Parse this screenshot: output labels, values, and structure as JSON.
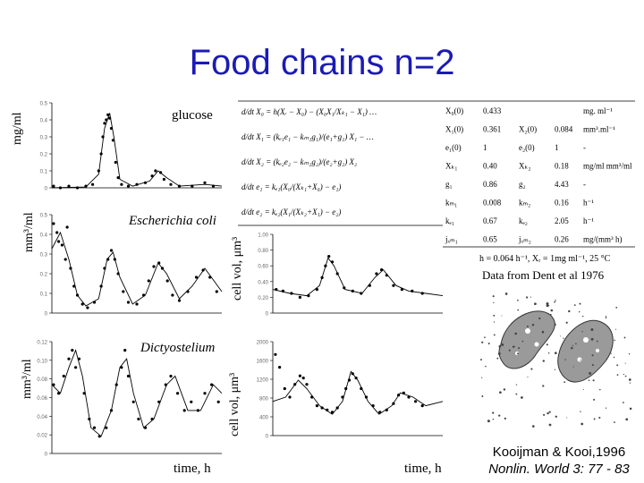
{
  "title": "Food chains n=2",
  "y_labels": {
    "glucose": "mg/ml",
    "coli": "mm³/ml",
    "dicty": "mm³/ml",
    "cellvol_top": "cell vol, μm³",
    "cellvol_bottom": "cell vol, μm³"
  },
  "x_labels": {
    "left": "time, h",
    "right": "time, h"
  },
  "panel_labels": {
    "glucose": "glucose",
    "coli": "Escherichia coli",
    "dicty": "Dictyostelium"
  },
  "parameters": {
    "header": [
      "X₀(0)",
      "0.433",
      "",
      "",
      "mg. ml⁻¹"
    ],
    "rows": [
      [
        "X₁(0)",
        "0.361",
        "X₂(0)",
        "0.084",
        "mm³.ml⁻¹"
      ],
      [
        "e₁(0)",
        "1",
        "e₂(0)",
        "1",
        "-"
      ],
      [
        "Xₖ₁",
        "0.40",
        "Xₖ₂",
        "0.18",
        "mg/ml  mm³/ml"
      ],
      [
        "g₁",
        "0.86",
        "g₂",
        "4.43",
        "-"
      ],
      [
        "kₘ₁",
        "0.008",
        "kₘ₂",
        "0.16",
        "h⁻¹"
      ],
      [
        "kₑ₁",
        "0.67",
        "kₑ₂",
        "2.05",
        "h⁻¹"
      ],
      [
        "jₓₘ₁",
        "0.65",
        "jₓₘ₂",
        "0.26",
        "mg/(mm³ h)"
      ]
    ],
    "note": "h = 0.064 h⁻¹, Xᵣ = 1mg ml⁻¹, 25 °C",
    "source": "Data from Dent et al 1976"
  },
  "equations": [
    "d/dt X₀ = h(Xᵣ − X₀) − (X₀X₁/Xₖ₁ − X₁) …",
    "d/dt X₁ = (kₑ₁e₁ − kₘ₁g₁)/(e₁+g₁) X₁ − …",
    "d/dt X₂ = (kₑ₂e₂ − kₘ₂g₂)/(e₂+g₂) X₂",
    "d/dt e₁ = kₑ₁(X₀/(Xₖ₁+X₀) − e₁)",
    "d/dt e₂ = kₑ₂(X₁/(Xₖ₂+X₁) − e₂)"
  ],
  "credit": {
    "line1": "Kooijman & Kooi,1996",
    "line2": "Nonlin. World 3: 77 - 83"
  },
  "chart_data": [
    {
      "type": "scatter",
      "name": "glucose",
      "xlim": [
        0,
        200
      ],
      "ylim": [
        0,
        0.5
      ],
      "ticks": [
        "0.5",
        "0.4",
        "0.3",
        "0.2",
        "0.1",
        "0"
      ],
      "model": [
        [
          0,
          0
        ],
        [
          40,
          0.005
        ],
        [
          55,
          0.08
        ],
        [
          62,
          0.35
        ],
        [
          68,
          0.44
        ],
        [
          73,
          0.3
        ],
        [
          80,
          0.05
        ],
        [
          95,
          0.01
        ],
        [
          115,
          0.04
        ],
        [
          125,
          0.1
        ],
        [
          135,
          0.06
        ],
        [
          150,
          0.01
        ],
        [
          180,
          0.02
        ],
        [
          200,
          0.01
        ]
      ],
      "points": [
        [
          2,
          0.01
        ],
        [
          10,
          0.0
        ],
        [
          20,
          0.01
        ],
        [
          30,
          0.0
        ],
        [
          40,
          0.01
        ],
        [
          48,
          0.02
        ],
        [
          55,
          0.1
        ],
        [
          58,
          0.2
        ],
        [
          60,
          0.3
        ],
        [
          62,
          0.38
        ],
        [
          64,
          0.4
        ],
        [
          66,
          0.43
        ],
        [
          68,
          0.41
        ],
        [
          70,
          0.35
        ],
        [
          72,
          0.28
        ],
        [
          75,
          0.15
        ],
        [
          78,
          0.06
        ],
        [
          82,
          0.02
        ],
        [
          90,
          0.01
        ],
        [
          100,
          0.02
        ],
        [
          110,
          0.03
        ],
        [
          118,
          0.07
        ],
        [
          122,
          0.1
        ],
        [
          128,
          0.09
        ],
        [
          132,
          0.05
        ],
        [
          140,
          0.02
        ],
        [
          150,
          0.01
        ],
        [
          165,
          0.01
        ],
        [
          180,
          0.03
        ],
        [
          190,
          0.01
        ]
      ]
    },
    {
      "type": "scatter",
      "name": "Escherichia coli",
      "xlim": [
        0,
        200
      ],
      "ylim": [
        0,
        0.55
      ],
      "ticks": [
        "0.5",
        "0.4",
        "0.3",
        "0.2",
        "0.1",
        "0"
      ],
      "model": [
        [
          0,
          0.36
        ],
        [
          10,
          0.45
        ],
        [
          20,
          0.3
        ],
        [
          30,
          0.1
        ],
        [
          40,
          0.04
        ],
        [
          55,
          0.08
        ],
        [
          65,
          0.3
        ],
        [
          72,
          0.34
        ],
        [
          80,
          0.2
        ],
        [
          95,
          0.05
        ],
        [
          110,
          0.1
        ],
        [
          125,
          0.28
        ],
        [
          135,
          0.22
        ],
        [
          150,
          0.08
        ],
        [
          165,
          0.15
        ],
        [
          180,
          0.25
        ],
        [
          200,
          0.12
        ]
      ],
      "points": [
        [
          2,
          0.5
        ],
        [
          6,
          0.45
        ],
        [
          8,
          0.4
        ],
        [
          12,
          0.38
        ],
        [
          16,
          0.3
        ],
        [
          18,
          0.48
        ],
        [
          22,
          0.25
        ],
        [
          26,
          0.15
        ],
        [
          30,
          0.1
        ],
        [
          36,
          0.05
        ],
        [
          42,
          0.03
        ],
        [
          50,
          0.06
        ],
        [
          58,
          0.15
        ],
        [
          62,
          0.25
        ],
        [
          66,
          0.3
        ],
        [
          70,
          0.35
        ],
        [
          74,
          0.3
        ],
        [
          78,
          0.22
        ],
        [
          84,
          0.12
        ],
        [
          90,
          0.06
        ],
        [
          100,
          0.05
        ],
        [
          108,
          0.1
        ],
        [
          114,
          0.18
        ],
        [
          120,
          0.26
        ],
        [
          126,
          0.28
        ],
        [
          130,
          0.25
        ],
        [
          136,
          0.18
        ],
        [
          142,
          0.1
        ],
        [
          150,
          0.07
        ],
        [
          160,
          0.12
        ],
        [
          170,
          0.2
        ],
        [
          178,
          0.24
        ],
        [
          186,
          0.2
        ],
        [
          194,
          0.12
        ]
      ]
    },
    {
      "type": "scatter",
      "name": "Dictyostelium",
      "xlim": [
        0,
        200
      ],
      "ylim": [
        0,
        0.13
      ],
      "ticks": [
        "0.12",
        "0.10",
        "0.08",
        "0.06",
        "0.04",
        "0.02",
        "0"
      ],
      "model": [
        [
          0,
          0.08
        ],
        [
          10,
          0.07
        ],
        [
          20,
          0.1
        ],
        [
          28,
          0.12
        ],
        [
          36,
          0.09
        ],
        [
          46,
          0.03
        ],
        [
          58,
          0.02
        ],
        [
          70,
          0.05
        ],
        [
          80,
          0.1
        ],
        [
          88,
          0.11
        ],
        [
          96,
          0.07
        ],
        [
          108,
          0.03
        ],
        [
          120,
          0.04
        ],
        [
          135,
          0.08
        ],
        [
          145,
          0.09
        ],
        [
          160,
          0.05
        ],
        [
          175,
          0.05
        ],
        [
          190,
          0.08
        ],
        [
          200,
          0.07
        ]
      ],
      "points": [
        [
          2,
          0.08
        ],
        [
          8,
          0.07
        ],
        [
          14,
          0.09
        ],
        [
          20,
          0.11
        ],
        [
          24,
          0.12
        ],
        [
          28,
          0.1
        ],
        [
          32,
          0.11
        ],
        [
          38,
          0.07
        ],
        [
          44,
          0.04
        ],
        [
          50,
          0.03
        ],
        [
          56,
          0.02
        ],
        [
          64,
          0.03
        ],
        [
          70,
          0.05
        ],
        [
          76,
          0.08
        ],
        [
          82,
          0.1
        ],
        [
          86,
          0.12
        ],
        [
          90,
          0.09
        ],
        [
          96,
          0.06
        ],
        [
          102,
          0.04
        ],
        [
          110,
          0.03
        ],
        [
          118,
          0.04
        ],
        [
          126,
          0.06
        ],
        [
          134,
          0.08
        ],
        [
          140,
          0.09
        ],
        [
          148,
          0.07
        ],
        [
          156,
          0.05
        ],
        [
          164,
          0.06
        ],
        [
          172,
          0.05
        ],
        [
          180,
          0.07
        ],
        [
          188,
          0.08
        ],
        [
          196,
          0.06
        ]
      ]
    },
    {
      "type": "scatter",
      "name": "E. coli cell volume",
      "xlim": [
        0,
        200
      ],
      "ylim": [
        0,
        1
      ],
      "ticks": [
        "1.00",
        "0.80",
        "0.60",
        "0.40",
        "0.20",
        "0"
      ],
      "model": [
        [
          0,
          0.3
        ],
        [
          20,
          0.25
        ],
        [
          40,
          0.22
        ],
        [
          55,
          0.35
        ],
        [
          65,
          0.7
        ],
        [
          72,
          0.6
        ],
        [
          85,
          0.3
        ],
        [
          105,
          0.25
        ],
        [
          120,
          0.45
        ],
        [
          130,
          0.55
        ],
        [
          145,
          0.35
        ],
        [
          160,
          0.28
        ],
        [
          180,
          0.25
        ],
        [
          200,
          0.22
        ]
      ],
      "points": [
        [
          4,
          0.3
        ],
        [
          12,
          0.28
        ],
        [
          22,
          0.25
        ],
        [
          32,
          0.2
        ],
        [
          42,
          0.22
        ],
        [
          52,
          0.3
        ],
        [
          58,
          0.45
        ],
        [
          62,
          0.6
        ],
        [
          66,
          0.72
        ],
        [
          70,
          0.65
        ],
        [
          76,
          0.5
        ],
        [
          84,
          0.32
        ],
        [
          94,
          0.28
        ],
        [
          104,
          0.25
        ],
        [
          114,
          0.35
        ],
        [
          122,
          0.5
        ],
        [
          128,
          0.55
        ],
        [
          134,
          0.48
        ],
        [
          142,
          0.35
        ],
        [
          152,
          0.3
        ],
        [
          164,
          0.28
        ],
        [
          176,
          0.25
        ]
      ]
    },
    {
      "type": "scatter",
      "name": "Dictyostelium cell volume",
      "xlim": [
        0,
        200
      ],
      "ylim": [
        0,
        2200
      ],
      "ticks": [
        "2000",
        "1600",
        "1200",
        "800",
        "400",
        "0"
      ],
      "model": [
        [
          0,
          800
        ],
        [
          15,
          900
        ],
        [
          30,
          1300
        ],
        [
          40,
          1100
        ],
        [
          55,
          700
        ],
        [
          70,
          500
        ],
        [
          82,
          800
        ],
        [
          92,
          1500
        ],
        [
          100,
          1300
        ],
        [
          112,
          800
        ],
        [
          125,
          500
        ],
        [
          140,
          700
        ],
        [
          150,
          1000
        ],
        [
          165,
          900
        ],
        [
          180,
          700
        ],
        [
          200,
          800
        ]
      ],
      "points": [
        [
          3,
          1900
        ],
        [
          8,
          1600
        ],
        [
          14,
          1100
        ],
        [
          20,
          900
        ],
        [
          26,
          1200
        ],
        [
          32,
          1400
        ],
        [
          36,
          1350
        ],
        [
          40,
          1200
        ],
        [
          46,
          900
        ],
        [
          52,
          700
        ],
        [
          58,
          650
        ],
        [
          64,
          600
        ],
        [
          70,
          550
        ],
        [
          76,
          650
        ],
        [
          82,
          900
        ],
        [
          86,
          1100
        ],
        [
          90,
          1300
        ],
        [
          94,
          1450
        ],
        [
          98,
          1350
        ],
        [
          104,
          1100
        ],
        [
          110,
          900
        ],
        [
          118,
          700
        ],
        [
          126,
          550
        ],
        [
          134,
          600
        ],
        [
          142,
          750
        ],
        [
          148,
          950
        ],
        [
          154,
          1000
        ],
        [
          160,
          900
        ],
        [
          168,
          800
        ],
        [
          176,
          700
        ]
      ]
    }
  ]
}
